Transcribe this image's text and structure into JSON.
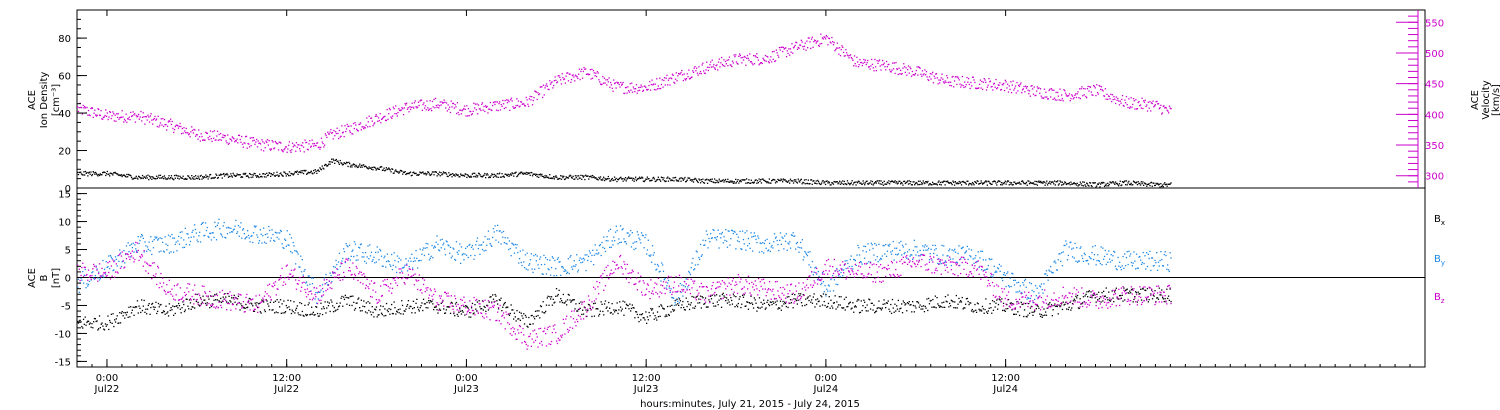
{
  "chart_data": [
    {
      "type": "scatter",
      "ylabel_lines": [
        "ACE",
        "Ion Density",
        "[cm⁻³]"
      ],
      "y2label_lines": [
        "ACE",
        "Velocity",
        "[km/s]"
      ],
      "ylim": [
        0,
        95
      ],
      "y2lim": [
        280,
        570
      ],
      "yticks": [
        "0",
        "20",
        "40",
        "60",
        "80"
      ],
      "yticks_values": [
        0,
        20,
        40,
        60,
        80
      ],
      "y2ticks": [
        "300",
        "350",
        "400",
        "450",
        "500",
        "550"
      ],
      "y2ticks_values": [
        300,
        350,
        400,
        450,
        500,
        550
      ],
      "colors": {
        "density": "#000000",
        "velocity": "#cc00cc"
      },
      "series": [
        {
          "axis": "left",
          "x": [
            -2,
            0,
            2,
            4,
            6,
            8,
            10,
            12,
            14,
            15,
            16,
            18,
            20,
            22,
            24,
            26,
            28,
            30,
            32,
            34,
            36,
            38,
            40,
            42,
            44,
            46,
            48,
            50,
            52,
            54,
            56,
            58,
            60,
            62,
            64,
            66,
            68,
            70,
            71
          ],
          "values": [
            8,
            8,
            6,
            6,
            6,
            7,
            7,
            8,
            9,
            15,
            13,
            11,
            8,
            8,
            7,
            7,
            8,
            6,
            6,
            5,
            5,
            5,
            4,
            4,
            4,
            4,
            3,
            3,
            3,
            3,
            3,
            3,
            3,
            3,
            3,
            2,
            3,
            2,
            2
          ]
        },
        {
          "axis": "right",
          "x": [
            -2,
            0,
            2,
            4,
            6,
            8,
            10,
            12,
            14,
            15,
            16,
            18,
            20,
            22,
            24,
            26,
            28,
            30,
            32,
            34,
            36,
            38,
            40,
            42,
            44,
            46,
            48,
            50,
            52,
            54,
            56,
            58,
            60,
            62,
            64,
            66,
            68,
            70,
            71
          ],
          "values": [
            410,
            398,
            398,
            385,
            368,
            362,
            352,
            348,
            350,
            368,
            375,
            395,
            412,
            418,
            408,
            415,
            420,
            455,
            470,
            445,
            445,
            462,
            478,
            490,
            492,
            510,
            525,
            485,
            480,
            470,
            455,
            452,
            448,
            438,
            432,
            440,
            420,
            415,
            405
          ]
        }
      ]
    },
    {
      "type": "scatter",
      "ylabel_lines": [
        "ACE",
        "B",
        "[nT]"
      ],
      "ylim": [
        -16,
        16
      ],
      "yticks": [
        "-15",
        "-10",
        "-5",
        "0",
        "5",
        "10",
        "15"
      ],
      "yticks_values": [
        -15,
        -10,
        -5,
        0,
        5,
        10,
        15
      ],
      "xticks_values": [
        0,
        12,
        24,
        36,
        48,
        60
      ],
      "xticks_time": [
        "0:00",
        "12:00",
        "0:00",
        "12:00",
        "0:00",
        "12:00"
      ],
      "xticks_date": [
        "Jul22",
        "Jul22",
        "Jul23",
        "Jul23",
        "Jul24",
        "Jul24"
      ],
      "xlim": [
        -2,
        88
      ],
      "xlabel": "hours:minutes, July 21, 2015 - July 24, 2015",
      "legend_main": "B",
      "colors": {
        "Bx": "#000000",
        "By": "#1e88e5",
        "Bz": "#cc00cc"
      },
      "series": [
        {
          "name": "x",
          "x": [
            -2,
            0,
            2,
            4,
            6,
            8,
            10,
            12,
            14,
            16,
            18,
            20,
            22,
            24,
            26,
            28,
            30,
            32,
            34,
            36,
            38,
            40,
            42,
            44,
            46,
            48,
            50,
            52,
            54,
            56,
            58,
            60,
            62,
            64,
            66,
            68,
            70,
            71
          ],
          "values": [
            -8,
            -8,
            -5,
            -6,
            -4,
            -4,
            -5,
            -5,
            -6,
            -4,
            -6,
            -5,
            -5,
            -6,
            -4,
            -8,
            -3,
            -6,
            -5,
            -7,
            -5,
            -4,
            -4,
            -5,
            -4,
            -4,
            -5,
            -5,
            -5,
            -4,
            -5,
            -5,
            -6,
            -5,
            -3,
            -3,
            -3,
            -3
          ]
        },
        {
          "name": "y",
          "x": [
            -2,
            0,
            2,
            4,
            6,
            8,
            10,
            12,
            14,
            16,
            18,
            20,
            22,
            24,
            26,
            28,
            30,
            32,
            34,
            36,
            38,
            40,
            42,
            44,
            46,
            48,
            50,
            52,
            54,
            56,
            58,
            60,
            62,
            64,
            66,
            68,
            70,
            71
          ],
          "values": [
            -1,
            2,
            6,
            6,
            8,
            9,
            8,
            7,
            -3,
            5,
            4,
            2,
            6,
            4,
            8,
            3,
            2,
            3,
            8,
            6,
            -4,
            7,
            7,
            6,
            7,
            -2,
            4,
            5,
            5,
            4,
            4,
            0,
            -3,
            5,
            4,
            3,
            3,
            3
          ]
        },
        {
          "name": "z",
          "x": [
            -2,
            0,
            2,
            4,
            6,
            8,
            10,
            12,
            14,
            16,
            18,
            20,
            22,
            24,
            26,
            28,
            30,
            32,
            34,
            36,
            38,
            40,
            42,
            44,
            46,
            48,
            50,
            52,
            54,
            56,
            58,
            60,
            62,
            64,
            66,
            68,
            70,
            71
          ],
          "values": [
            1,
            1,
            5,
            -2,
            -3,
            -4,
            -5,
            1,
            -3,
            2,
            -3,
            1,
            -4,
            -5,
            -6,
            -11,
            -10,
            -5,
            3,
            -2,
            -1,
            -3,
            -1,
            -2,
            -3,
            2,
            1,
            1,
            3,
            2,
            2,
            -4,
            -4,
            -3,
            -4,
            -3,
            -3,
            -3
          ]
        }
      ]
    }
  ]
}
